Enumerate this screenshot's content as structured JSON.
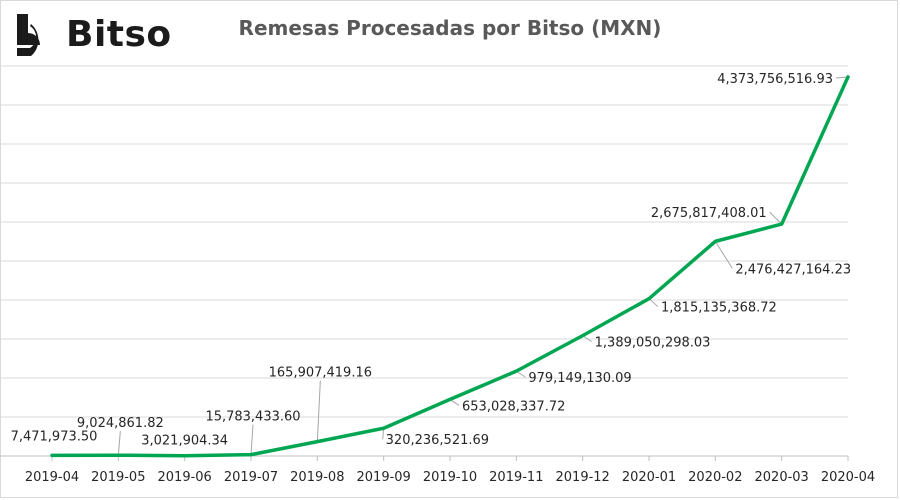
{
  "brand": {
    "name": "Bitso",
    "logo_icon": "bitso-logo-icon"
  },
  "chart_data": {
    "type": "line",
    "title": "Remesas Procesadas por Bitso (MXN)",
    "xlabel": "",
    "ylabel": "",
    "categories": [
      "2019-04",
      "2019-05",
      "2019-06",
      "2019-07",
      "2019-08",
      "2019-09",
      "2019-10",
      "2019-11",
      "2019-12",
      "2020-01",
      "2020-02",
      "2020-03",
      "2020-04"
    ],
    "values": [
      7471973.5,
      9024861.82,
      3021904.34,
      15783433.6,
      165907419.16,
      320236521.69,
      653028337.72,
      979149130.09,
      1389050298.03,
      1815135368.72,
      2476427164.23,
      2675817408.01,
      4373756516.93
    ],
    "data_labels": [
      "7,471,973.50",
      "9,024,861.82",
      "3,021,904.34",
      "15,783,433.60",
      "165,907,419.16",
      "320,236,521.69",
      "653,028,337.72",
      "979,149,130.09",
      "1,389,050,298.03",
      "1,815,135,368.72",
      "2,476,427,164.23",
      "2,675,817,408.01",
      "4,373,756,516.93"
    ],
    "ylim": [
      0,
      4500000000
    ],
    "y_axis_labels": false,
    "grid": true,
    "line_color": "#00a651",
    "leader_color": "#a6a6a6"
  }
}
